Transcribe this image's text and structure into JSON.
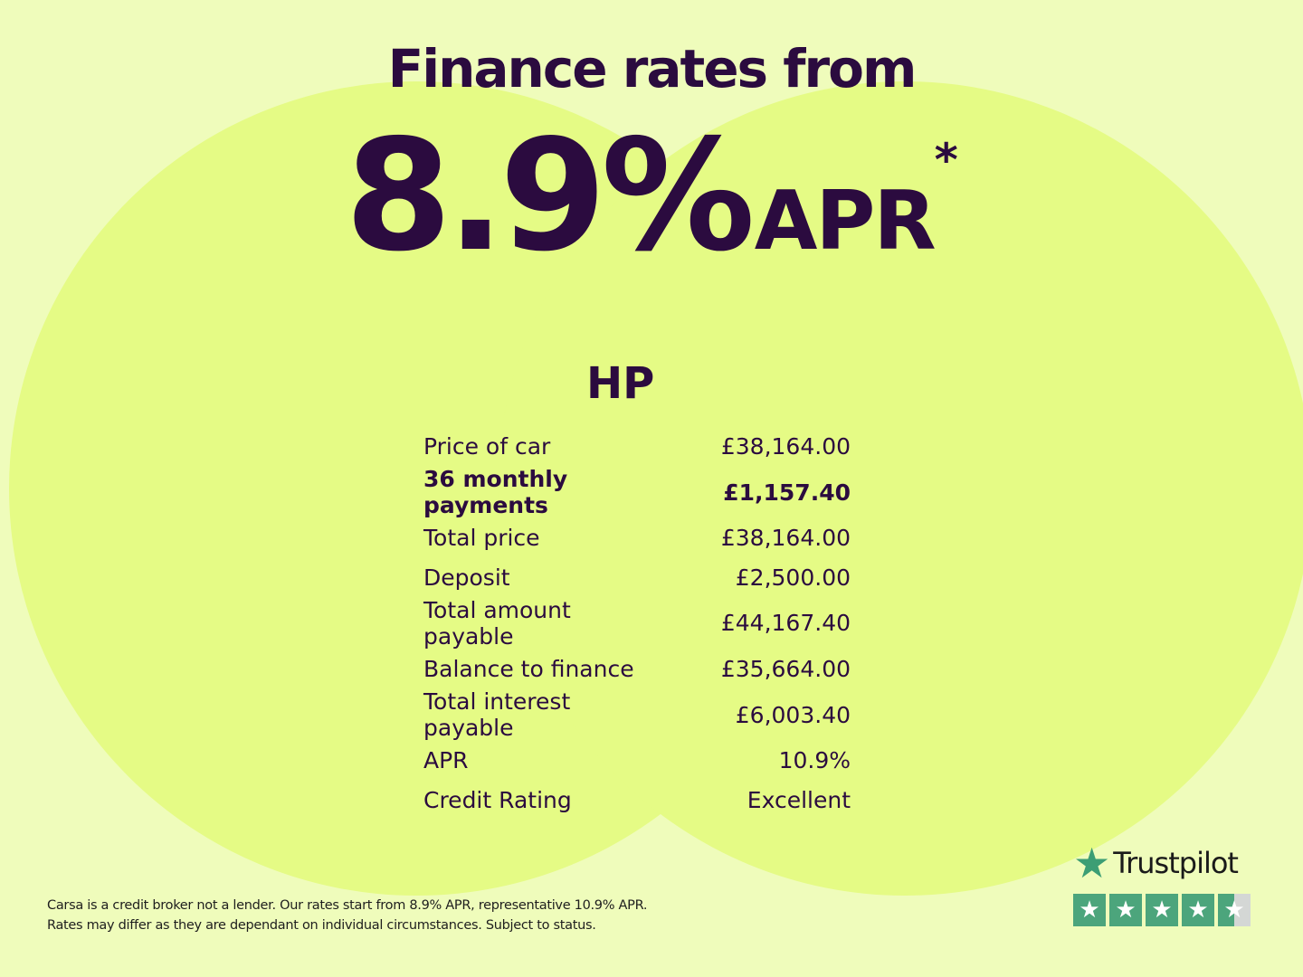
{
  "headline": {
    "title": "Finance rates from",
    "rate": "8.9%",
    "apr": "APR",
    "asterisk": "*"
  },
  "table": {
    "heading": "HP",
    "rows": [
      {
        "label": "Price of car",
        "value": "£38,164.00"
      },
      {
        "label": "36 monthly payments",
        "value": "£1,157.40",
        "bold": true
      },
      {
        "label": "Total price",
        "value": "£38,164.00"
      },
      {
        "label": "Deposit",
        "value": "£2,500.00"
      },
      {
        "label": "Total amount payable",
        "value": "£44,167.40"
      },
      {
        "label": "Balance to finance",
        "value": "£35,664.00"
      },
      {
        "label": "Total interest payable",
        "value": "£6,003.40"
      },
      {
        "label": "APR",
        "value": "10.9%"
      },
      {
        "label": "Credit Rating",
        "value": "Excellent"
      }
    ]
  },
  "footer": {
    "line1": "Carsa is a credit broker not a lender. Our rates start from 8.9% APR, representative 10.9% APR.",
    "line2": "Rates may differ as they are dependant on individual circumstances. Subject to status."
  },
  "trustpilot": {
    "name": "Trustpilot",
    "rating_stars": 4.5,
    "max_stars": 5,
    "color": "#4ca57c"
  },
  "colors": {
    "background": "#effcbb",
    "circles": "#e5fb85",
    "text": "#2b0b3f"
  }
}
